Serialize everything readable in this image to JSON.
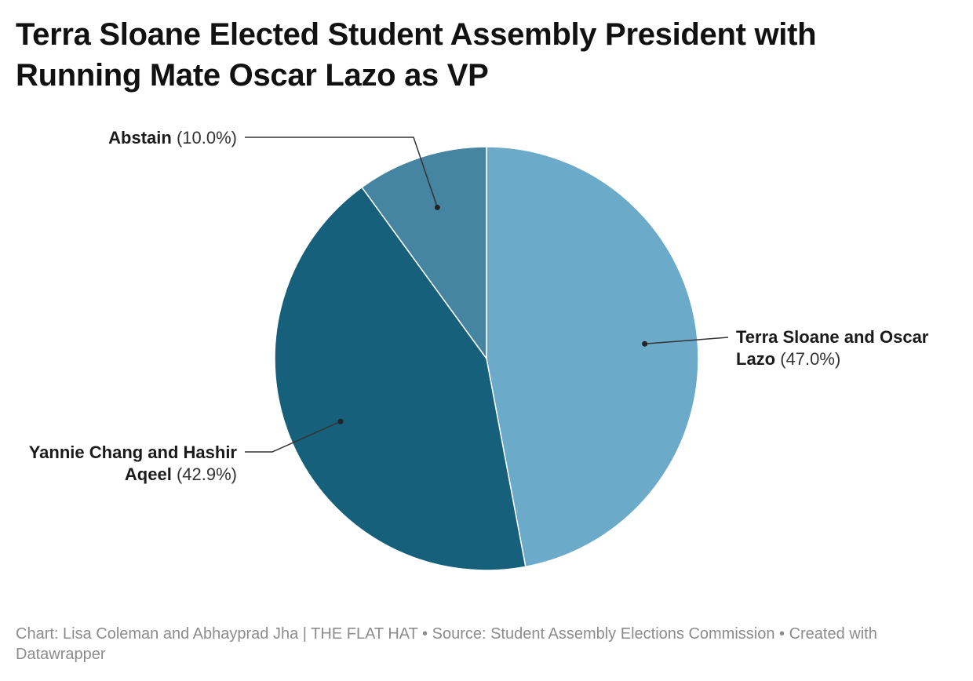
{
  "title": "Terra Sloane Elected Student Assembly President with Running Mate Oscar Lazo as VP",
  "footer": "Chart: Lisa Coleman and Abhayprad Jha | THE FLAT HAT • Source: Student Assembly Elections Commission • Created with Datawrapper",
  "chart_data": {
    "type": "pie",
    "title": "Terra Sloane Elected Student Assembly President with Running Mate Oscar Lazo as VP",
    "slices": [
      {
        "label": "Terra Sloane and Oscar Lazo",
        "value": 47.0,
        "display": "(47.0%)",
        "color": "#6baac8"
      },
      {
        "label": "Yannie Chang and Hashir Aqeel",
        "value": 42.9,
        "display": "(42.9%)",
        "color": "#17607c"
      },
      {
        "label": "Abstain",
        "value": 10.0,
        "display": "(10.0%)",
        "color": "#4585a1"
      }
    ],
    "start": "12 o'clock",
    "direction": "clockwise",
    "legend": "none",
    "labels": "outside with leader lines"
  }
}
